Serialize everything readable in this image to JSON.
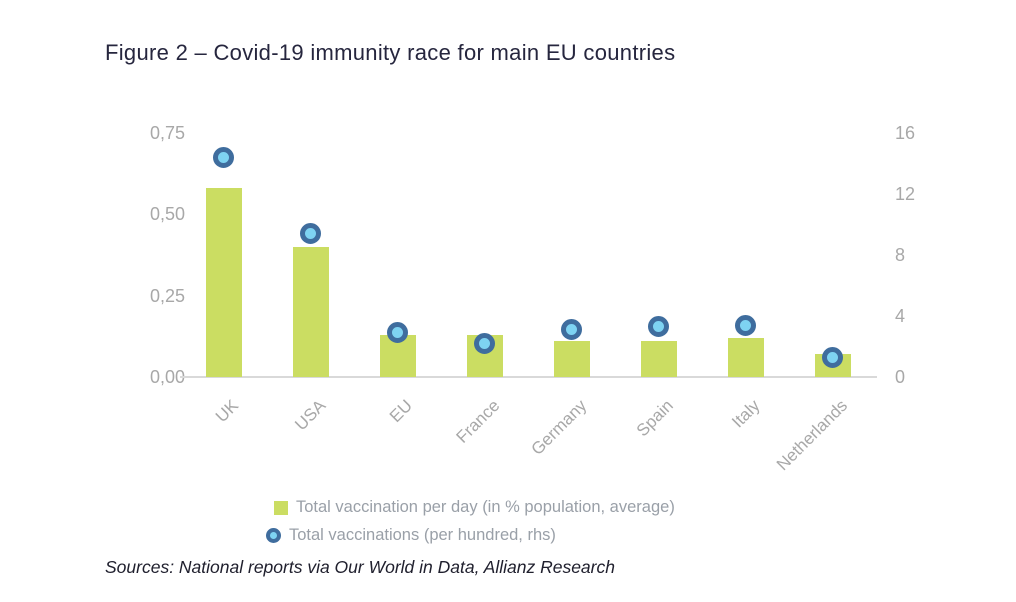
{
  "figure": {
    "title": "Figure 2 – Covid-19 immunity race for main EU countries",
    "sources": "Sources: National reports via Our World in Data, Allianz Research"
  },
  "colors": {
    "bar": "#cbdd62",
    "dot_ring": "#3f6d9e",
    "dot_fill": "#7ed3f2",
    "axis_line": "#d9d9d9",
    "axis_text": "#a8a8a8",
    "legend_text": "#9aa0a8",
    "title_text": "#26263e",
    "sources_text": "#20202e"
  },
  "chart_data": {
    "type": "bar",
    "subtype": "bar + scatter combo, dual axis",
    "categories": [
      "UK",
      "USA",
      "EU",
      "France",
      "Germany",
      "Spain",
      "Italy",
      "Netherlands"
    ],
    "series": [
      {
        "name": "Total vaccination per day (in % population, average)",
        "type": "bar",
        "axis": "left",
        "values": [
          0.58,
          0.4,
          0.13,
          0.13,
          0.11,
          0.11,
          0.12,
          0.07
        ]
      },
      {
        "name": "Total vaccinations (per hundred, rhs)",
        "type": "scatter",
        "axis": "right",
        "values": [
          14.4,
          9.4,
          2.9,
          2.2,
          3.1,
          3.3,
          3.4,
          1.3
        ]
      }
    ],
    "left_axis": {
      "range": [
        0,
        0.75
      ],
      "ticks": [
        {
          "label": "0,00",
          "value": 0
        },
        {
          "label": "0,25",
          "value": 0.25
        },
        {
          "label": "0,50",
          "value": 0.5
        },
        {
          "label": "0,75",
          "value": 0.75
        }
      ]
    },
    "right_axis": {
      "range": [
        0,
        16
      ],
      "ticks": [
        {
          "label": "0",
          "value": 0
        },
        {
          "label": "4",
          "value": 4
        },
        {
          "label": "8",
          "value": 8
        },
        {
          "label": "12",
          "value": 12
        },
        {
          "label": "16",
          "value": 16
        }
      ]
    },
    "grid": false,
    "legend_position": "bottom"
  }
}
